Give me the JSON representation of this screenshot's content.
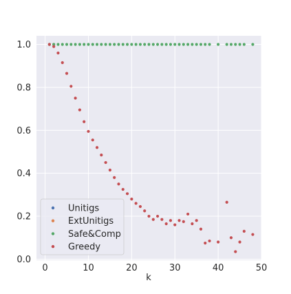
{
  "colors": {
    "background": "#ffffff",
    "plot_bg": "#eaeaf2",
    "grid": "#ffffff",
    "Unitigs": "#4c72b0",
    "ExtUnitigs": "#dd8452",
    "Safe&Comp": "#55a868",
    "Greedy": "#c44e52"
  },
  "chart_data": {
    "type": "scatter",
    "title": "",
    "xlabel": "k",
    "ylabel": "",
    "xlim": [
      -2,
      50
    ],
    "ylim": [
      -0.005,
      1.04
    ],
    "xticks": [
      0,
      10,
      20,
      30,
      40,
      50
    ],
    "yticks": [
      0.0,
      0.2,
      0.4,
      0.6,
      0.8,
      1.0
    ],
    "xtick_labels": [
      "0",
      "10",
      "20",
      "30",
      "40",
      "50"
    ],
    "ytick_labels": [
      "0.0",
      "0.2",
      "0.4",
      "0.6",
      "0.8",
      "1.0"
    ],
    "grid": true,
    "legend_position": "lower-left",
    "series": [
      {
        "name": "Unitigs",
        "x": [
          1,
          2
        ],
        "y": [
          1.0,
          1.0
        ]
      },
      {
        "name": "ExtUnitigs",
        "x": [
          1,
          2
        ],
        "y": [
          1.0,
          1.0
        ]
      },
      {
        "name": "Safe&Comp",
        "x": [
          1,
          2,
          3,
          4,
          5,
          6,
          7,
          8,
          9,
          10,
          11,
          12,
          13,
          14,
          15,
          16,
          17,
          18,
          19,
          20,
          21,
          22,
          23,
          24,
          25,
          26,
          27,
          28,
          29,
          30,
          31,
          32,
          33,
          34,
          35,
          36,
          37,
          38,
          40,
          42,
          43,
          44,
          45,
          46,
          48
        ],
        "y": [
          1.0,
          1.0,
          1.0,
          1.0,
          1.0,
          1.0,
          1.0,
          1.0,
          1.0,
          1.0,
          1.0,
          1.0,
          1.0,
          1.0,
          1.0,
          1.0,
          1.0,
          1.0,
          1.0,
          1.0,
          1.0,
          1.0,
          1.0,
          1.0,
          1.0,
          1.0,
          1.0,
          1.0,
          1.0,
          1.0,
          1.0,
          1.0,
          1.0,
          1.0,
          1.0,
          1.0,
          1.0,
          1.0,
          1.0,
          1.0,
          1.0,
          1.0,
          1.0,
          1.0,
          1.0
        ]
      },
      {
        "name": "Greedy",
        "x": [
          1,
          2,
          3,
          4,
          5,
          6,
          7,
          8,
          9,
          10,
          11,
          12,
          13,
          14,
          15,
          16,
          17,
          18,
          19,
          20,
          21,
          22,
          23,
          24,
          25,
          26,
          27,
          28,
          29,
          30,
          31,
          32,
          33,
          34,
          35,
          36,
          37,
          38,
          40,
          42,
          43,
          44,
          45,
          46,
          48
        ],
        "y": [
          1.0,
          0.99,
          0.96,
          0.915,
          0.865,
          0.805,
          0.75,
          0.695,
          0.64,
          0.595,
          0.555,
          0.52,
          0.485,
          0.45,
          0.415,
          0.38,
          0.35,
          0.325,
          0.305,
          0.28,
          0.26,
          0.245,
          0.225,
          0.2,
          0.185,
          0.2,
          0.185,
          0.165,
          0.18,
          0.16,
          0.18,
          0.175,
          0.21,
          0.165,
          0.18,
          0.14,
          0.075,
          0.085,
          0.08,
          0.265,
          0.1,
          0.035,
          0.08,
          0.13,
          0.115
        ]
      }
    ]
  }
}
